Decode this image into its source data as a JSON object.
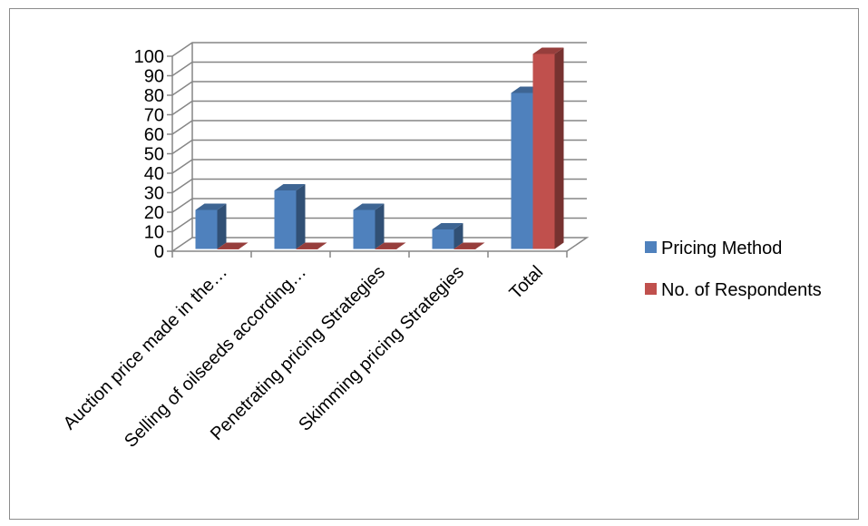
{
  "chart_data": {
    "type": "bar",
    "style": "3d-clustered-column",
    "categories": [
      "Auction price made in  the…",
      "Selling of oilseeds according…",
      "Penetrating pricing Strategies",
      "Skimming pricing Strategies",
      "Total"
    ],
    "series": [
      {
        "name": "Pricing Method",
        "color": "#4F81BD",
        "values": [
          20,
          30,
          20,
          10,
          80
        ]
      },
      {
        "name": "No. of Respondents",
        "color": "#C0504D",
        "values": [
          0,
          0,
          0,
          0,
          100
        ]
      }
    ],
    "ylim": [
      0,
      100
    ],
    "yticks": [
      0,
      10,
      20,
      30,
      40,
      50,
      60,
      70,
      80,
      90,
      100
    ],
    "grid": true,
    "legend": "right",
    "xlabel": "",
    "ylabel": "",
    "title": ""
  }
}
